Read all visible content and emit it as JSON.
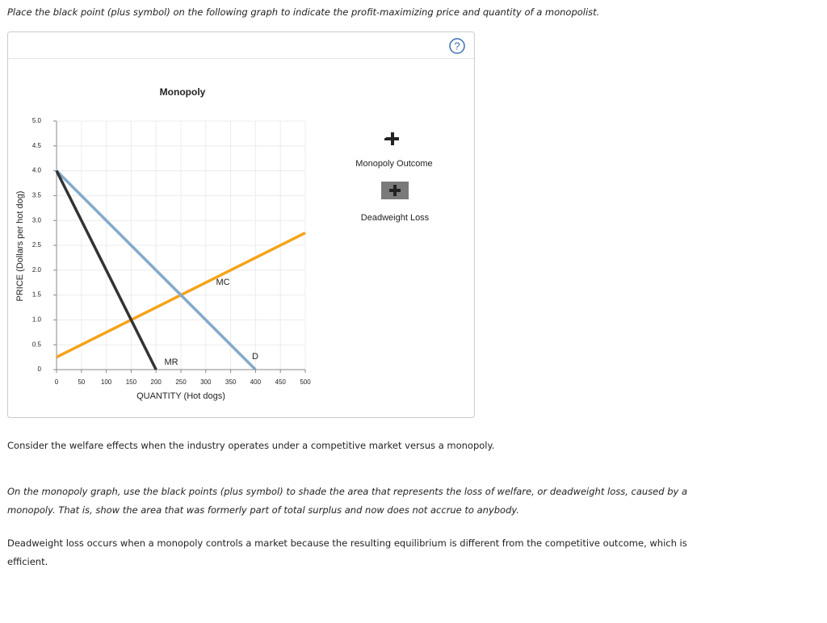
{
  "instruction": "Place the black point (plus symbol) on the following graph to indicate the profit-maximizing price and quantity of a monopolist.",
  "help_icon": "?",
  "chart_data": {
    "type": "line",
    "title": "Monopoly",
    "x_label": "QUANTITY (Hot dogs)",
    "y_label": "PRICE (Dollars per hot dog)",
    "xlim": [
      0,
      500
    ],
    "ylim": [
      0,
      5
    ],
    "xticks": [
      0,
      50,
      100,
      150,
      200,
      250,
      300,
      350,
      400,
      450,
      500
    ],
    "yticks": [
      0,
      0.5,
      {
        "value": 1,
        "label": "1.0"
      },
      1.5,
      {
        "value": 2,
        "label": "2.0"
      },
      2.5,
      {
        "value": 3,
        "label": "3.0"
      },
      3.5,
      {
        "value": 4,
        "label": "4.0"
      },
      4.5,
      {
        "value": 5,
        "label": "5.0"
      }
    ],
    "grid": true,
    "series": [
      {
        "name": "MC",
        "color": "#f7a21b",
        "x": [
          0,
          500
        ],
        "values": [
          0.25,
          2.75
        ]
      },
      {
        "name": "D",
        "color": "#82aacb",
        "x": [
          0,
          400
        ],
        "values": [
          4,
          0
        ]
      },
      {
        "name": "MR",
        "color": "#333333",
        "x": [
          0,
          200
        ],
        "values": [
          4,
          0
        ]
      }
    ]
  },
  "legend": {
    "items": [
      "Monopoly Outcome",
      "Deadweight Loss"
    ]
  },
  "paragraphs": [
    "Consider the welfare effects when the industry operates under a competitive market versus a monopoly.",
    "On the monopoly graph, use the black points (plus symbol) to shade the area that represents the loss of welfare, or deadweight loss, caused by a monopoly. That is, show the area that was formerly part of total surplus and now does not accrue to anybody.",
    "Deadweight loss occurs when a monopoly controls a market because the resulting equilibrium is different from the competitive outcome, which is efficient."
  ]
}
